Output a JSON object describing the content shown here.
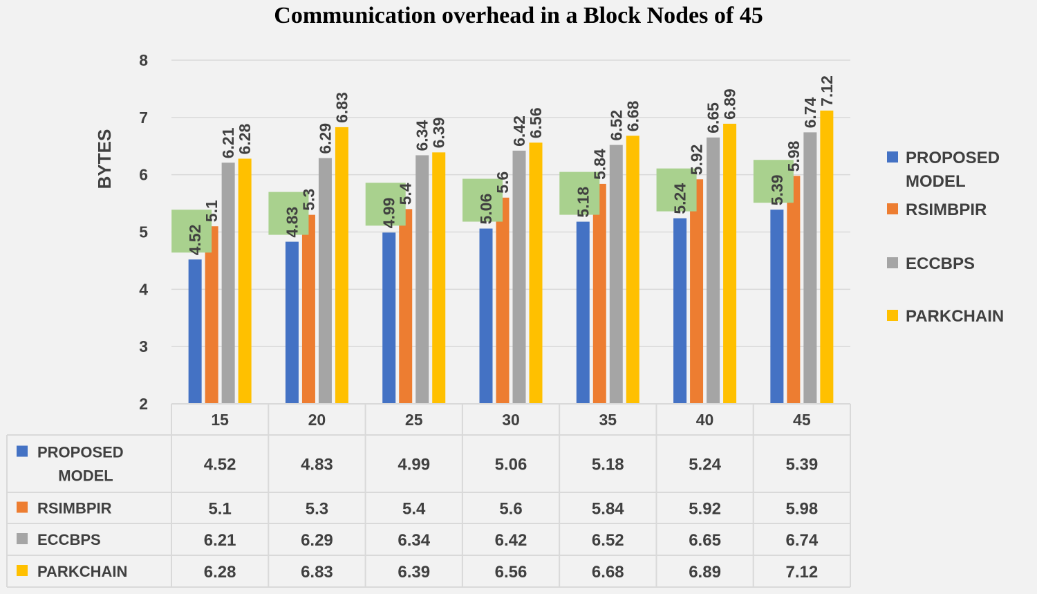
{
  "chart_data": {
    "type": "bar",
    "title": "Communication overhead in a Block Nodes of 45",
    "xlabel": "",
    "ylabel": "BYTES",
    "ylim": [
      2,
      8
    ],
    "yticks": [
      2,
      3,
      4,
      5,
      6,
      7,
      8
    ],
    "grid": true,
    "legend_position": "right",
    "categories": [
      "15",
      "20",
      "25",
      "30",
      "35",
      "40",
      "45"
    ],
    "series": [
      {
        "name": "PROPOSED MODEL",
        "name_lines": [
          "PROPOSED",
          "MODEL"
        ],
        "color": "#4472c4",
        "values": [
          4.52,
          4.83,
          4.99,
          5.06,
          5.18,
          5.24,
          5.39
        ]
      },
      {
        "name": "RSIMBPIR",
        "name_lines": [
          "RSIMBPIR"
        ],
        "color": "#ed7d31",
        "values": [
          5.1,
          5.3,
          5.4,
          5.6,
          5.84,
          5.92,
          5.98
        ]
      },
      {
        "name": "ECCBPS",
        "name_lines": [
          "ECCBPS"
        ],
        "color": "#a5a5a5",
        "values": [
          6.21,
          6.29,
          6.34,
          6.42,
          6.52,
          6.65,
          6.74
        ]
      },
      {
        "name": "PARKCHAIN",
        "name_lines": [
          "PARKCHAIN"
        ],
        "color": "#ffc000",
        "values": [
          6.28,
          6.83,
          6.39,
          6.56,
          6.68,
          6.89,
          7.12
        ]
      }
    ],
    "highlight_series": 0,
    "highlight_color": "#a9d18e",
    "data_table": true
  }
}
